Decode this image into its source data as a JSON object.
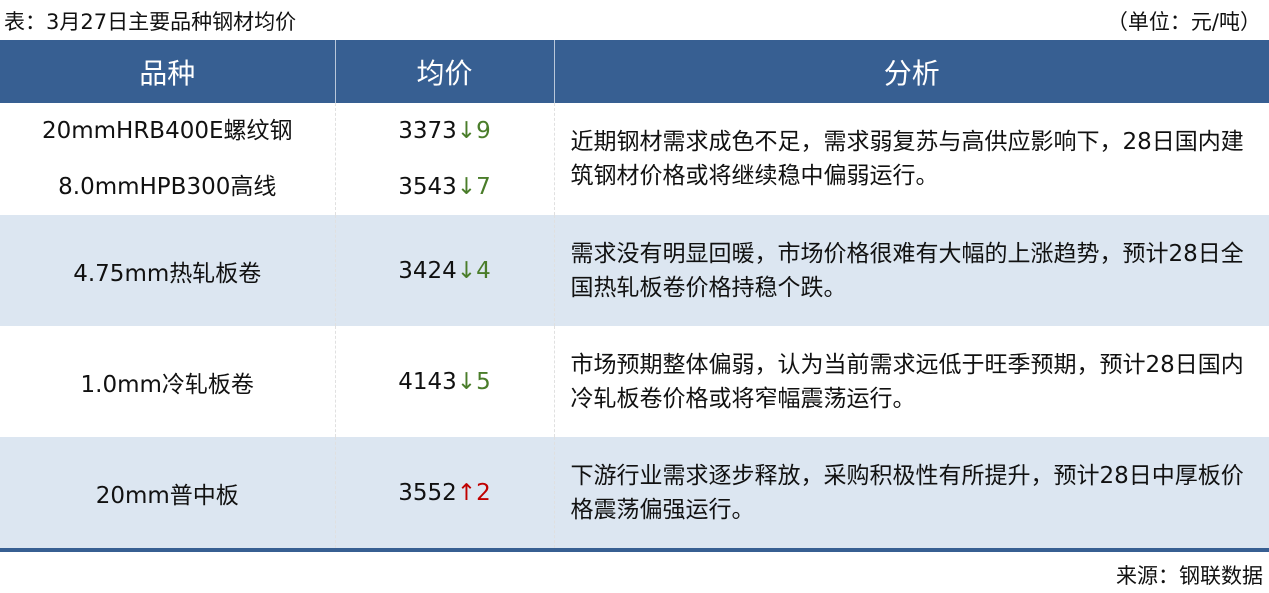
{
  "title": "表：3月27日主要品种钢材均价",
  "unit": "（单位：元/吨）",
  "headers": [
    "品种",
    "均价",
    "分析"
  ],
  "colors": {
    "header_bg": "#375f92",
    "alt_row": "#dce6f1",
    "down": "#4a7d2a",
    "up": "#c00000"
  },
  "rows": [
    {
      "items": [
        {
          "name": "20mmHRB400E螺纹钢",
          "price": "3373",
          "arrow": "↓",
          "change": "9",
          "dir": "down"
        },
        {
          "name": "8.0mmHPB300高线",
          "price": "3543",
          "arrow": "↓",
          "change": "7",
          "dir": "down"
        }
      ],
      "analysis": "近期钢材需求成色不足，需求弱复苏与高供应影响下，28日国内建筑钢材价格或将继续稳中偏弱运行。"
    },
    {
      "items": [
        {
          "name": "4.75mm热轧板卷",
          "price": "3424",
          "arrow": "↓",
          "change": "4",
          "dir": "down"
        }
      ],
      "analysis": "需求没有明显回暖，市场价格很难有大幅的上涨趋势，预计28日全国热轧板卷价格持稳个跌。"
    },
    {
      "items": [
        {
          "name": "1.0mm冷轧板卷",
          "price": "4143",
          "arrow": "↓",
          "change": "5",
          "dir": "down"
        }
      ],
      "analysis": "市场预期整体偏弱，认为当前需求远低于旺季预期，预计28日国内冷轧板卷价格或将窄幅震荡运行。"
    },
    {
      "items": [
        {
          "name": "20mm普中板",
          "price": "3552",
          "arrow": "↑",
          "change": "2",
          "dir": "up"
        }
      ],
      "analysis": "下游行业需求逐步释放，采购积极性有所提升，预计28日中厚板价格震荡偏强运行。"
    }
  ],
  "source": "来源：钢联数据"
}
